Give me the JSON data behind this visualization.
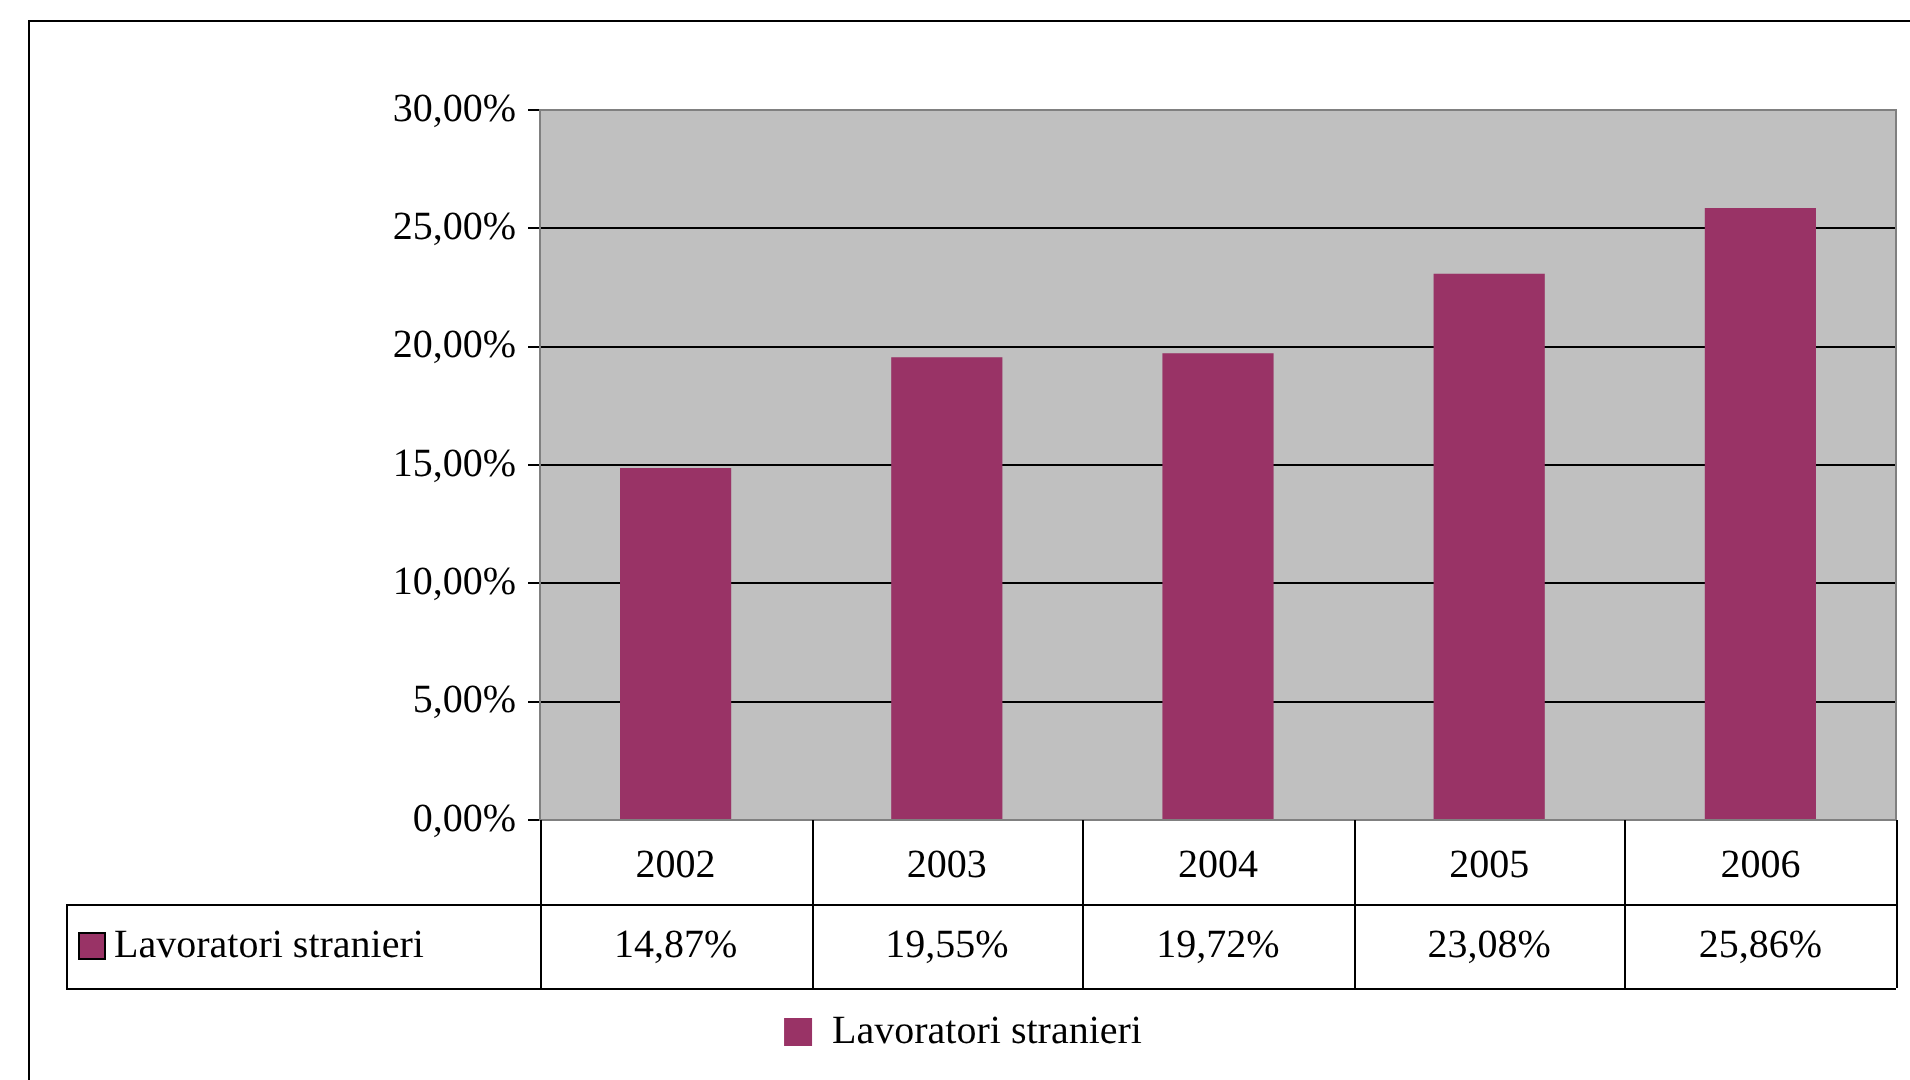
{
  "chart_data": {
    "type": "bar",
    "categories": [
      "2002",
      "2003",
      "2004",
      "2005",
      "2006"
    ],
    "series": [
      {
        "name": "Lavoratori stranieri",
        "color": "#993366",
        "values": [
          14.87,
          19.55,
          19.72,
          23.08,
          25.86
        ],
        "value_labels": [
          "14,87%",
          "19,55%",
          "19,72%",
          "23,08%",
          "25,86%"
        ]
      }
    ],
    "ylim": [
      0,
      30
    ],
    "yticks": [
      {
        "value": 0,
        "label": "0,00%"
      },
      {
        "value": 5,
        "label": "5,00%"
      },
      {
        "value": 10,
        "label": "10,00%"
      },
      {
        "value": 15,
        "label": "15,00%"
      },
      {
        "value": 20,
        "label": "20,00%"
      },
      {
        "value": 25,
        "label": "25,00%"
      },
      {
        "value": 30,
        "label": "30,00%"
      }
    ],
    "grid": "y",
    "legend": "bottom"
  }
}
